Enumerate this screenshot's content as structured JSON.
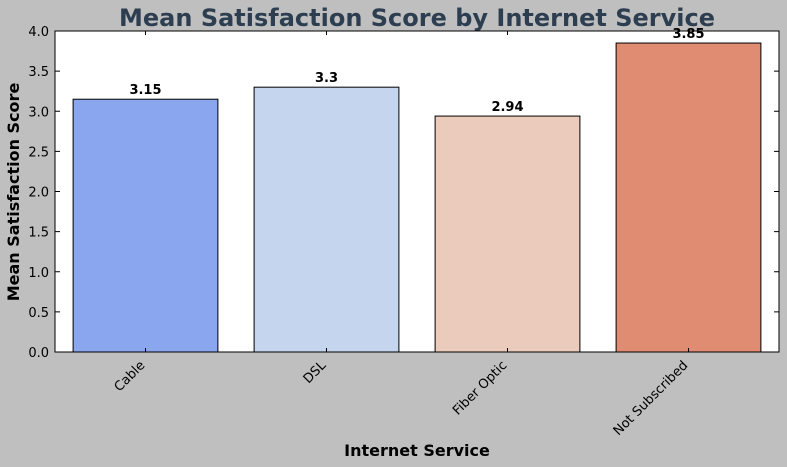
{
  "chart_data": {
    "type": "bar",
    "title": "Mean Satisfaction Score by Internet Service",
    "xlabel": "Internet Service",
    "ylabel": "Mean Satisfaction Score",
    "categories": [
      "Cable",
      "DSL",
      "Fiber Optic",
      "Not Subscribed"
    ],
    "values": [
      3.15,
      3.3,
      2.94,
      3.85
    ],
    "data_labels": [
      "3.15",
      "3.3",
      "2.94",
      "3.85"
    ],
    "colors": [
      "#89a6ee",
      "#c5d5ee",
      "#ebcbbb",
      "#e08c73"
    ],
    "ylim": [
      0,
      4.0
    ],
    "yticks": [
      "0.0",
      "0.5",
      "1.0",
      "1.5",
      "2.0",
      "2.5",
      "3.0",
      "3.5",
      "4.0"
    ],
    "grid": false,
    "legend": "none"
  }
}
